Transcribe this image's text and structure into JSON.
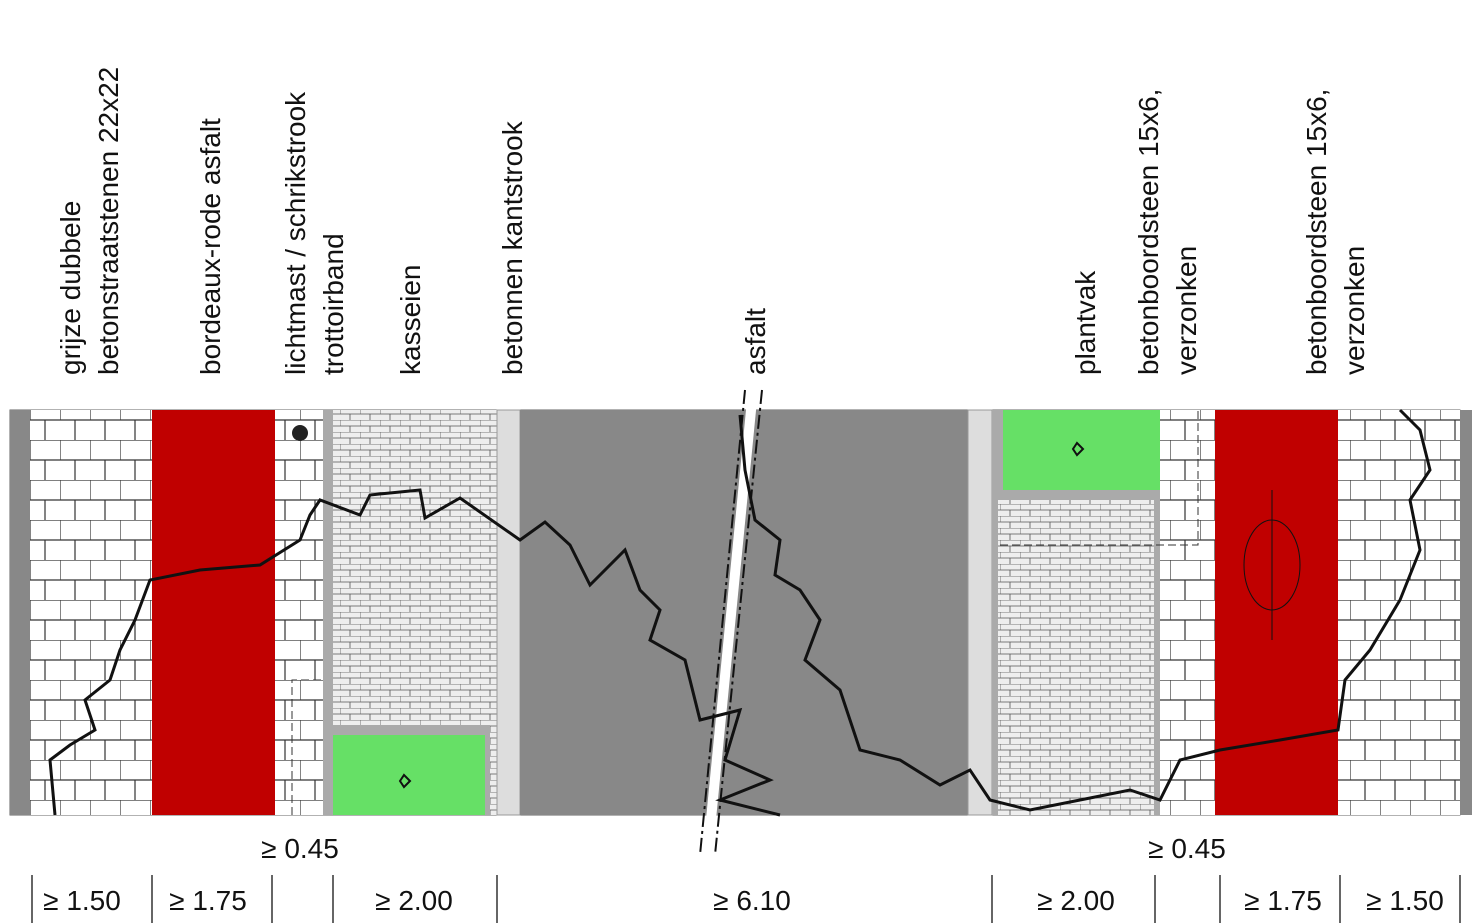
{
  "labels": [
    {
      "lines": [
        "grijze dubbele",
        "betonstraatstenen 22x22"
      ]
    },
    {
      "lines": [
        "bordeaux-rode asfalt"
      ]
    },
    {
      "lines": [
        "lichtmast / schrikstrook",
        "trottoirband"
      ]
    },
    {
      "lines": [
        "kasseien"
      ]
    },
    {
      "lines": [
        "betonnen kantstrook"
      ]
    },
    {
      "lines": [
        "asfalt"
      ]
    },
    {
      "lines": [
        "plantvak"
      ]
    },
    {
      "lines": [
        "betonboordsteen 15x6,",
        "verzonken"
      ]
    },
    {
      "lines": [
        "betonboordsteen 15x6,",
        "verzonken"
      ]
    }
  ],
  "offsets": [
    "≥ 0.45",
    "≥ 0.45"
  ],
  "dimensions": [
    "≥ 1.50",
    "≥ 1.75",
    "≥ 2.00",
    "≥ 6.10",
    "≥ 2.00",
    "≥ 1.75",
    "≥ 1.50"
  ]
}
